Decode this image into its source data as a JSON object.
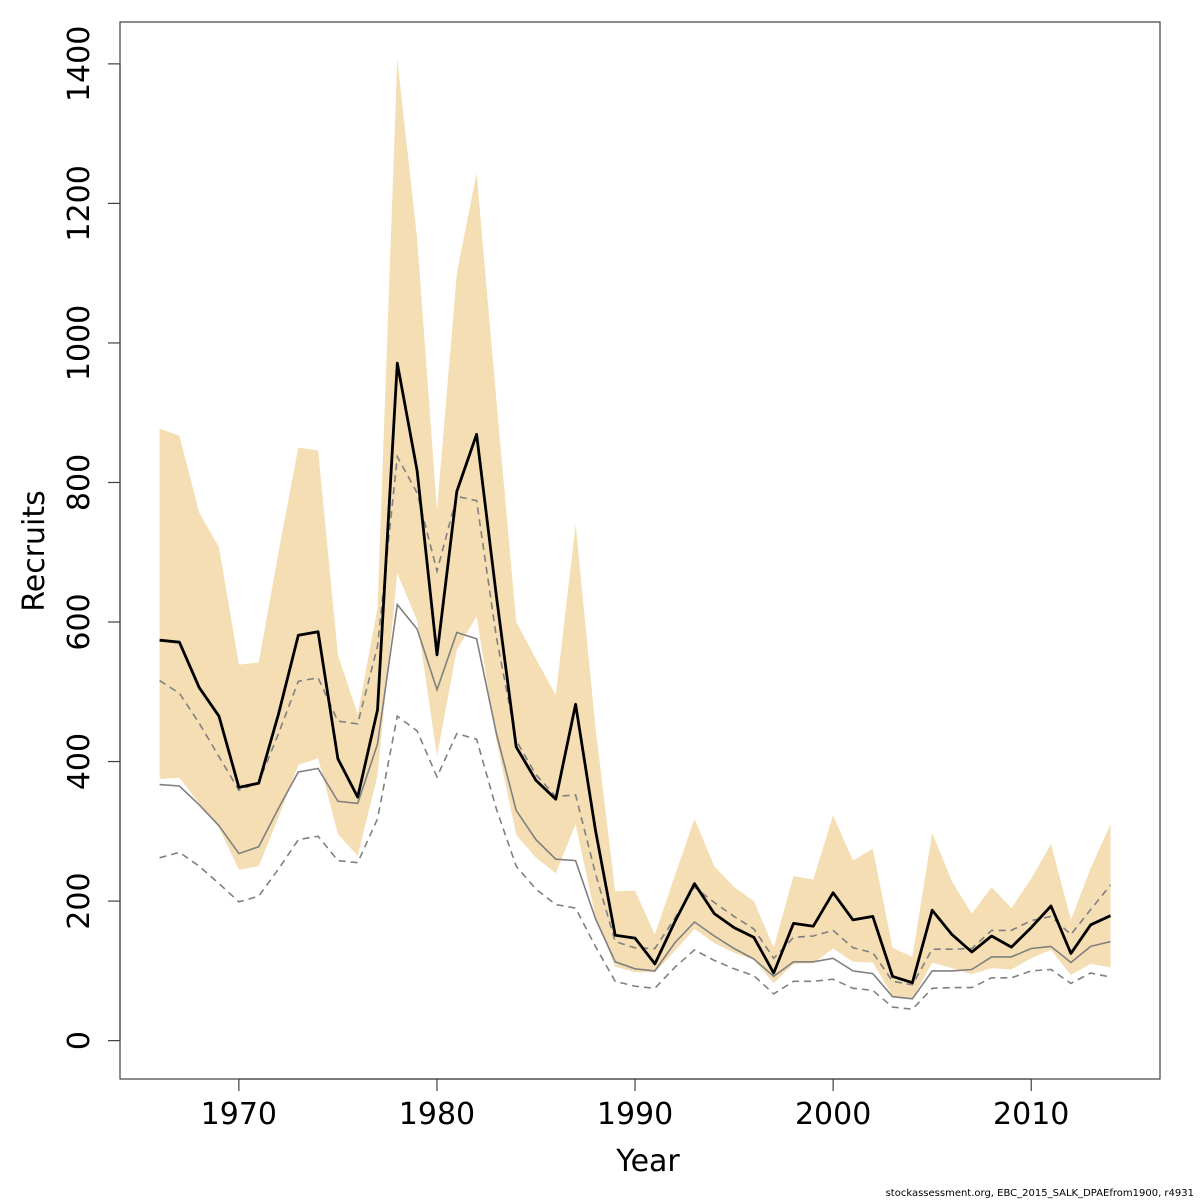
{
  "chart_data": {
    "type": "line",
    "title": "",
    "xlabel": "Year",
    "ylabel": "Recruits",
    "xlim": [
      1964,
      2016.5
    ],
    "ylim": [
      -55,
      1460
    ],
    "x_ticks": [
      "1970",
      "1980",
      "1990",
      "2000",
      "2010"
    ],
    "y_ticks": [
      "0",
      "200",
      "400",
      "600",
      "800",
      "1000",
      "1200",
      "1400"
    ],
    "grid": false,
    "legend": "none",
    "colors": {
      "band_fill": "#f5deb3",
      "median": "#000000",
      "reference_line": "#808080",
      "reference_dashed": "#808080",
      "frame": "#404040"
    },
    "x": [
      1966,
      1967,
      1968,
      1969,
      1970,
      1971,
      1972,
      1973,
      1974,
      1975,
      1976,
      1977,
      1978,
      1979,
      1980,
      1981,
      1982,
      1983,
      1984,
      1985,
      1986,
      1987,
      1988,
      1989,
      1990,
      1991,
      1992,
      1993,
      1994,
      1995,
      1996,
      1997,
      1998,
      1999,
      2000,
      2001,
      2002,
      2003,
      2004,
      2005,
      2006,
      2007,
      2008,
      2009,
      2010,
      2011,
      2012,
      2013,
      2014
    ],
    "series": [
      {
        "kind": "band-upper",
        "values": [
          877,
          867,
          757,
          707,
          539,
          542,
          700,
          850,
          846,
          553,
          468,
          620,
          1407,
          1150,
          760,
          1100,
          1243,
          918,
          600,
          547,
          495,
          740,
          450,
          214,
          215,
          152,
          236,
          318,
          250,
          220,
          200,
          133,
          236,
          231,
          323,
          258,
          275,
          133,
          120,
          298,
          228,
          182,
          220,
          190,
          232,
          282,
          173,
          247,
          310
        ]
      },
      {
        "kind": "band-lower",
        "values": [
          375,
          377,
          340,
          305,
          245,
          250,
          320,
          395,
          405,
          296,
          265,
          380,
          670,
          602,
          408,
          560,
          608,
          430,
          295,
          262,
          240,
          310,
          178,
          106,
          98,
          98,
          128,
          160,
          140,
          126,
          116,
          82,
          110,
          111,
          132,
          113,
          112,
          64,
          60,
          112,
          104,
          95,
          104,
          102,
          118,
          130,
          94,
          110,
          105
        ]
      },
      {
        "kind": "median",
        "values": [
          574,
          571,
          506,
          465,
          363,
          369,
          468,
          581,
          586,
          404,
          349,
          474,
          971,
          817,
          553,
          787,
          869,
          637,
          421,
          373,
          346,
          482,
          302,
          151,
          147,
          110,
          170,
          225,
          182,
          162,
          148,
          97,
          168,
          164,
          212,
          173,
          178,
          92,
          83,
          187,
          152,
          127,
          150,
          134,
          162,
          193,
          125,
          166,
          179
        ]
      },
      {
        "kind": "solid-gray",
        "values": [
          367,
          365,
          338,
          308,
          268,
          278,
          333,
          385,
          390,
          343,
          340,
          425,
          625,
          590,
          503,
          585,
          576,
          440,
          330,
          288,
          260,
          258,
          175,
          113,
          103,
          100,
          140,
          170,
          150,
          132,
          117,
          92,
          113,
          113,
          118,
          100,
          96,
          63,
          60,
          100,
          100,
          102,
          120,
          120,
          132,
          135,
          112,
          135,
          142
        ]
      },
      {
        "kind": "upper-dashed",
        "values": [
          516,
          498,
          455,
          407,
          359,
          370,
          440,
          515,
          520,
          458,
          454,
          565,
          837,
          785,
          673,
          780,
          774,
          578,
          430,
          381,
          350,
          352,
          240,
          142,
          133,
          132,
          175,
          220,
          198,
          178,
          160,
          118,
          148,
          150,
          158,
          133,
          126,
          85,
          80,
          131,
          131,
          132,
          158,
          158,
          172,
          178,
          152,
          188,
          223
        ]
      },
      {
        "kind": "lower-dashed",
        "values": [
          262,
          270,
          250,
          225,
          199,
          207,
          246,
          288,
          293,
          258,
          255,
          318,
          465,
          444,
          378,
          440,
          432,
          332,
          250,
          217,
          195,
          190,
          135,
          85,
          78,
          75,
          105,
          130,
          115,
          103,
          93,
          67,
          85,
          85,
          88,
          75,
          72,
          48,
          45,
          75,
          76,
          76,
          90,
          90,
          100,
          102,
          82,
          97,
          91
        ]
      }
    ]
  },
  "footer": "stockassessment.org, EBC_2015_SALK_DPAEfrom1900, r4931"
}
